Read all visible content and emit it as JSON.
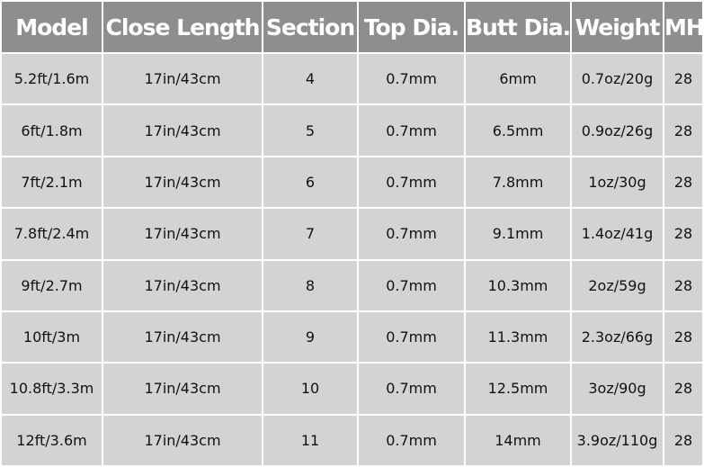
{
  "table": {
    "headers": [
      "Model",
      "Close Length",
      "Section",
      "Top Dia.",
      "Butt Dia.",
      "Weight",
      "MH"
    ],
    "rows": [
      [
        "5.2ft/1.6m",
        "17in/43cm",
        "4",
        "0.7mm",
        "6mm",
        "0.7oz/20g",
        "28"
      ],
      [
        "6ft/1.8m",
        "17in/43cm",
        "5",
        "0.7mm",
        "6.5mm",
        "0.9oz/26g",
        "28"
      ],
      [
        "7ft/2.1m",
        "17in/43cm",
        "6",
        "0.7mm",
        "7.8mm",
        "1oz/30g",
        "28"
      ],
      [
        "7.8ft/2.4m",
        "17in/43cm",
        "7",
        "0.7mm",
        "9.1mm",
        "1.4oz/41g",
        "28"
      ],
      [
        "9ft/2.7m",
        "17in/43cm",
        "8",
        "0.7mm",
        "10.3mm",
        "2oz/59g",
        "28"
      ],
      [
        "10ft/3m",
        "17in/43cm",
        "9",
        "0.7mm",
        "11.3mm",
        "2.3oz/66g",
        "28"
      ],
      [
        "10.8ft/3.3m",
        "17in/43cm",
        "10",
        "0.7mm",
        "12.5mm",
        "3oz/90g",
        "28"
      ],
      [
        "12ft/3.6m",
        "17in/43cm",
        "11",
        "0.7mm",
        "14mm",
        "3.9oz/110g",
        "28"
      ]
    ]
  },
  "colors": {
    "header_bg": "#8e8e8e",
    "cell_bg": "#d3d3d3",
    "border": "#ffffff"
  }
}
